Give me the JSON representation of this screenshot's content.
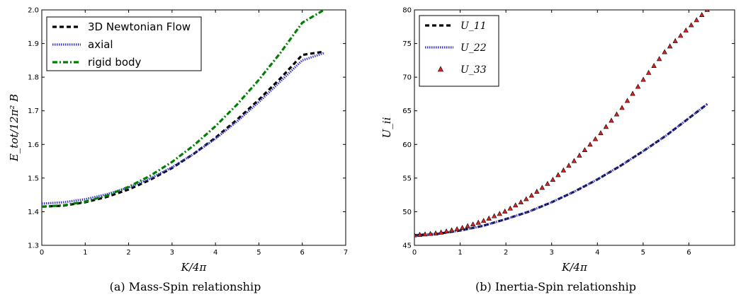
{
  "chart_data": [
    {
      "type": "line",
      "caption": "(a)  Mass-Spin relationship",
      "xlabel": "K/4π",
      "ylabel": "E_tot/12π² B",
      "xlim": [
        0,
        7
      ],
      "ylim": [
        1.3,
        2.0
      ],
      "xticks": [
        "0",
        "1",
        "2",
        "3",
        "4",
        "5",
        "6",
        "7"
      ],
      "yticks": [
        "1.3",
        "1.4",
        "1.5",
        "1.6",
        "1.7",
        "1.8",
        "1.9",
        "2.0"
      ],
      "legend_placement": "top-left",
      "grid": false,
      "series": [
        {
          "name": "3D Newtonian Flow",
          "color": "#000000",
          "style": "dashed",
          "x": [
            0,
            0.5,
            1,
            1.5,
            2,
            2.5,
            3,
            3.5,
            4,
            4.5,
            5,
            5.5,
            6,
            6.5
          ],
          "y": [
            1.415,
            1.418,
            1.428,
            1.444,
            1.466,
            1.495,
            1.53,
            1.572,
            1.62,
            1.674,
            1.733,
            1.797,
            1.866,
            1.876
          ]
        },
        {
          "name": "axial",
          "color": "#3a3acc",
          "style": "dotted",
          "x": [
            0,
            0.5,
            1,
            1.5,
            2,
            2.5,
            3,
            3.5,
            4,
            4.5,
            5,
            5.5,
            6,
            6.5
          ],
          "y": [
            1.424,
            1.428,
            1.437,
            1.452,
            1.472,
            1.499,
            1.532,
            1.572,
            1.617,
            1.669,
            1.726,
            1.788,
            1.85,
            1.872
          ]
        },
        {
          "name": "rigid body",
          "color": "#008000",
          "style": "dashdot",
          "x": [
            0,
            0.5,
            1,
            1.5,
            2,
            2.5,
            3,
            3.5,
            4,
            4.5,
            5,
            5.5,
            6,
            6.5
          ],
          "y": [
            1.415,
            1.419,
            1.43,
            1.448,
            1.474,
            1.507,
            1.548,
            1.597,
            1.654,
            1.719,
            1.792,
            1.873,
            1.962,
            2.0
          ]
        }
      ]
    },
    {
      "type": "line",
      "caption": "(b)  Inertia-Spin relationship",
      "xlabel": "K/4π",
      "ylabel": "U_ii",
      "xlim": [
        0,
        7
      ],
      "ylim": [
        45,
        80
      ],
      "xticks": [
        "0",
        "1",
        "2",
        "3",
        "4",
        "5",
        "6"
      ],
      "yticks": [
        "45",
        "50",
        "55",
        "60",
        "65",
        "70",
        "75",
        "80"
      ],
      "legend_placement": "top-left",
      "grid": false,
      "series": [
        {
          "name": "U_11",
          "color": "#000000",
          "style": "dashed",
          "x": [
            0,
            0.5,
            1,
            1.5,
            2,
            2.5,
            3,
            3.5,
            4,
            4.5,
            5,
            5.5,
            6,
            6.4
          ],
          "y": [
            46.5,
            46.7,
            47.2,
            47.9,
            48.9,
            50.0,
            51.4,
            53.0,
            54.8,
            56.8,
            59.0,
            61.3,
            63.9,
            66.0
          ]
        },
        {
          "name": "U_22",
          "color": "#3a3acc",
          "style": "dotted",
          "x": [
            0,
            0.5,
            1,
            1.5,
            2,
            2.5,
            3,
            3.5,
            4,
            4.5,
            5,
            5.5,
            6,
            6.4
          ],
          "y": [
            46.5,
            46.7,
            47.2,
            47.9,
            48.9,
            50.0,
            51.4,
            53.0,
            54.8,
            56.8,
            59.0,
            61.3,
            63.9,
            66.0
          ]
        },
        {
          "name": "U_33",
          "color": "#dd2222",
          "style": "triangle",
          "x": [
            0,
            0.5,
            1,
            1.5,
            2,
            2.5,
            3,
            3.5,
            4,
            4.5,
            5,
            5.5,
            6,
            6.4
          ],
          "y": [
            46.5,
            46.8,
            47.5,
            48.6,
            50.1,
            52.1,
            54.6,
            57.6,
            61.1,
            65.1,
            69.6,
            74.0,
            77.4,
            80.0
          ]
        }
      ]
    }
  ]
}
